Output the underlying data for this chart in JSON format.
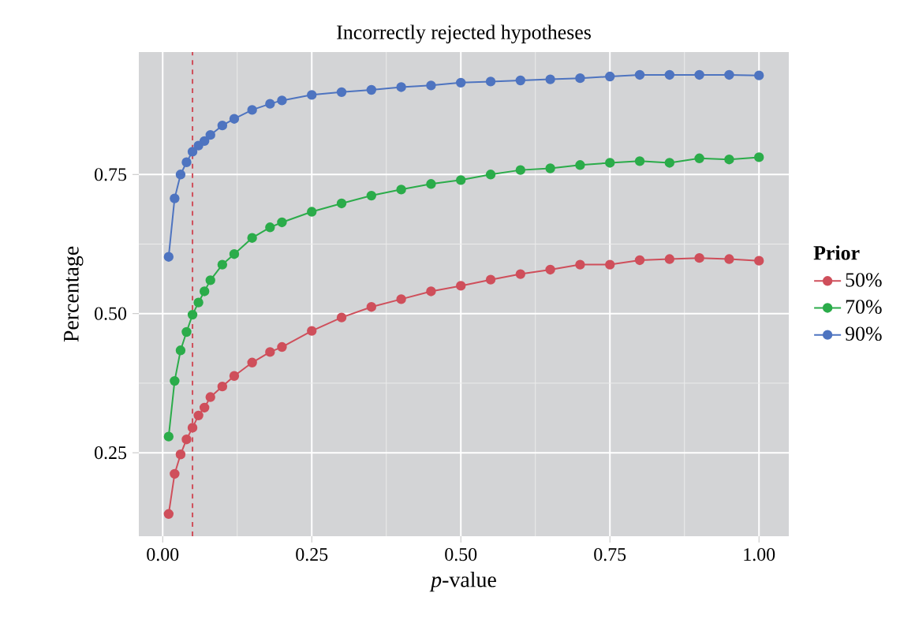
{
  "chart_data": {
    "type": "line",
    "title": "Incorrectly rejected hypotheses",
    "xlabel": "*p*-value",
    "ylabel": "Percentage",
    "legend_title": "Prior",
    "x": [
      0.01,
      0.02,
      0.03,
      0.04,
      0.05,
      0.06,
      0.07,
      0.08,
      0.1,
      0.12,
      0.15,
      0.18,
      0.2,
      0.25,
      0.3,
      0.35,
      0.4,
      0.45,
      0.5,
      0.55,
      0.6,
      0.65,
      0.7,
      0.75,
      0.8,
      0.85,
      0.9,
      0.95,
      1.0
    ],
    "series": [
      {
        "name": "50%",
        "color": "#cf4f5b",
        "values": [
          0.14,
          0.212,
          0.247,
          0.274,
          0.295,
          0.317,
          0.331,
          0.35,
          0.369,
          0.388,
          0.412,
          0.431,
          0.44,
          0.469,
          0.493,
          0.512,
          0.526,
          0.54,
          0.55,
          0.561,
          0.571,
          0.579,
          0.588,
          0.588,
          0.596,
          0.598,
          0.6,
          0.598,
          0.595
        ]
      },
      {
        "name": "70%",
        "color": "#2bac4a",
        "values": [
          0.279,
          0.379,
          0.434,
          0.467,
          0.498,
          0.52,
          0.54,
          0.56,
          0.588,
          0.607,
          0.636,
          0.655,
          0.664,
          0.683,
          0.698,
          0.712,
          0.723,
          0.733,
          0.74,
          0.75,
          0.758,
          0.761,
          0.767,
          0.771,
          0.774,
          0.771,
          0.779,
          0.777,
          0.781
        ]
      },
      {
        "name": "90%",
        "color": "#4e74c0",
        "values": [
          0.602,
          0.707,
          0.75,
          0.772,
          0.791,
          0.802,
          0.81,
          0.821,
          0.838,
          0.85,
          0.866,
          0.877,
          0.883,
          0.893,
          0.898,
          0.902,
          0.907,
          0.91,
          0.915,
          0.917,
          0.919,
          0.921,
          0.923,
          0.926,
          0.929,
          0.929,
          0.929,
          0.929,
          0.928
        ]
      }
    ],
    "xlim": [
      -0.04,
      1.05
    ],
    "ylim": [
      0.1,
      0.97
    ],
    "xticks": [
      {
        "value": 0,
        "label": "0.00"
      },
      0.25,
      {
        "value": 0.5,
        "label": "0.50"
      },
      0.75,
      {
        "value": 1,
        "label": "1.00"
      }
    ],
    "yticks": [
      0.25,
      {
        "value": 0.5,
        "label": "0.50"
      },
      0.75
    ],
    "ref_lines": [
      {
        "axis": "x",
        "value": 0.05,
        "color": "#cf4f5b",
        "line_style": "dashed"
      }
    ],
    "grid": true,
    "legend": "right",
    "marker": "circle",
    "line_style": "solid"
  }
}
